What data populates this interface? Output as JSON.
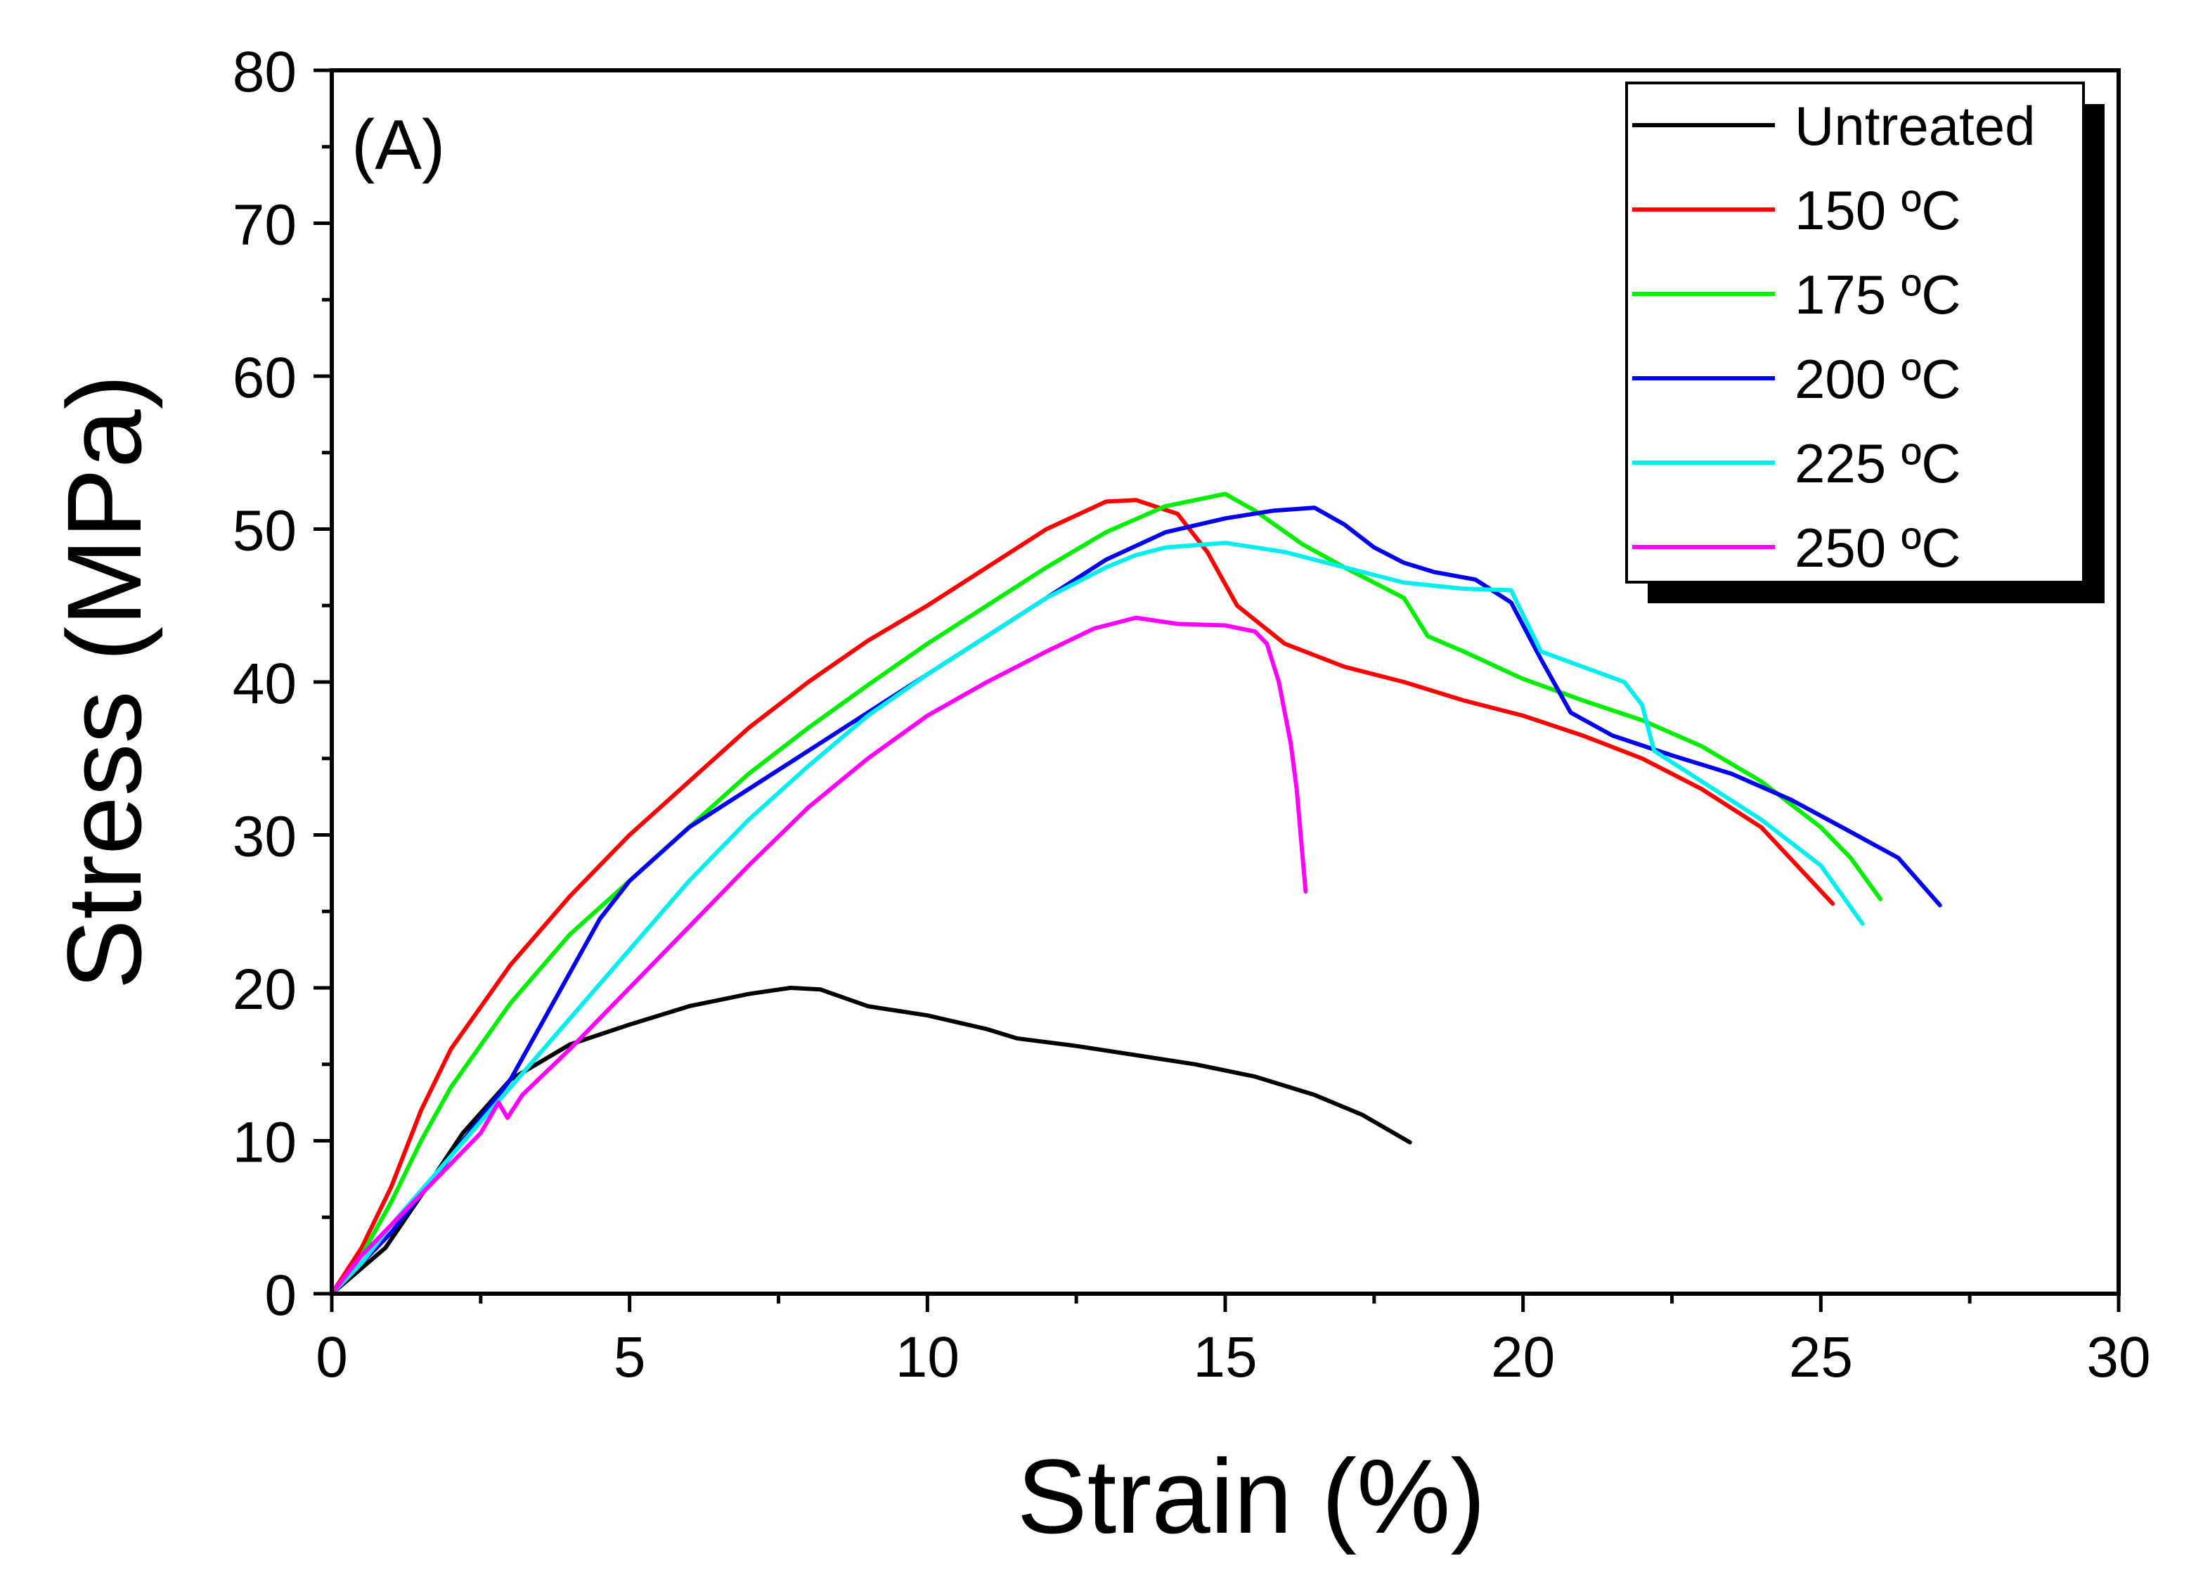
{
  "chart_data": {
    "type": "line",
    "panel_label": "(A)",
    "xlabel": "Strain (%)",
    "ylabel": "Stress (MPa)",
    "xlim": [
      0,
      30
    ],
    "ylim": [
      0,
      80
    ],
    "xticks": [
      0,
      5,
      10,
      15,
      20,
      25,
      30
    ],
    "yticks": [
      0,
      10,
      20,
      30,
      40,
      50,
      60,
      70,
      80
    ],
    "grid": false,
    "legend_position": "top-right",
    "series": [
      {
        "name": "Untreated",
        "color": "#000000",
        "points": [
          [
            0,
            0
          ],
          [
            0.9,
            3
          ],
          [
            1.6,
            7
          ],
          [
            2.2,
            10.5
          ],
          [
            3,
            14
          ],
          [
            4,
            16.3
          ],
          [
            5,
            17.6
          ],
          [
            6,
            18.8
          ],
          [
            7,
            19.6
          ],
          [
            7.7,
            20
          ],
          [
            8.2,
            19.9
          ],
          [
            9,
            18.8
          ],
          [
            10,
            18.2
          ],
          [
            11,
            17.3
          ],
          [
            11.5,
            16.7
          ],
          [
            12.5,
            16.2
          ],
          [
            13.5,
            15.6
          ],
          [
            14.5,
            15.0
          ],
          [
            15.5,
            14.2
          ],
          [
            16.5,
            13.0
          ],
          [
            17.3,
            11.7
          ],
          [
            18.1,
            9.9
          ]
        ]
      },
      {
        "name": "150 ºC",
        "color": "#ff0000",
        "points": [
          [
            0,
            0
          ],
          [
            0.5,
            3
          ],
          [
            1,
            7
          ],
          [
            1.5,
            12
          ],
          [
            2,
            16
          ],
          [
            3,
            21.5
          ],
          [
            4,
            26
          ],
          [
            5,
            30
          ],
          [
            6,
            33.5
          ],
          [
            7,
            37
          ],
          [
            8,
            40
          ],
          [
            9,
            42.7
          ],
          [
            10,
            45
          ],
          [
            11,
            47.5
          ],
          [
            12,
            50
          ],
          [
            13,
            51.8
          ],
          [
            13.5,
            51.9
          ],
          [
            14.2,
            51
          ],
          [
            14.7,
            48.5
          ],
          [
            15.2,
            45
          ],
          [
            16,
            42.5
          ],
          [
            17,
            41
          ],
          [
            18,
            40
          ],
          [
            19,
            38.8
          ],
          [
            20,
            37.8
          ],
          [
            21,
            36.5
          ],
          [
            22,
            35
          ],
          [
            23,
            33
          ],
          [
            24,
            30.5
          ],
          [
            25.2,
            25.5
          ]
        ]
      },
      {
        "name": "175 ºC",
        "color": "#00ee00",
        "points": [
          [
            0,
            0
          ],
          [
            0.5,
            2.5
          ],
          [
            1,
            6
          ],
          [
            1.5,
            10
          ],
          [
            2,
            13.5
          ],
          [
            3,
            19
          ],
          [
            4,
            23.5
          ],
          [
            5,
            27
          ],
          [
            6,
            30.5
          ],
          [
            7,
            34
          ],
          [
            8,
            37
          ],
          [
            9,
            39.8
          ],
          [
            10,
            42.5
          ],
          [
            11,
            45
          ],
          [
            12,
            47.5
          ],
          [
            13,
            49.8
          ],
          [
            14,
            51.5
          ],
          [
            15,
            52.3
          ],
          [
            15.5,
            51.2
          ],
          [
            16.3,
            49
          ],
          [
            17,
            47.5
          ],
          [
            18,
            45.5
          ],
          [
            18.4,
            43
          ],
          [
            19,
            42
          ],
          [
            20,
            40.2
          ],
          [
            21,
            38.8
          ],
          [
            22,
            37.5
          ],
          [
            23,
            35.8
          ],
          [
            24,
            33.5
          ],
          [
            25,
            30.5
          ],
          [
            25.5,
            28.5
          ],
          [
            26,
            25.8
          ]
        ]
      },
      {
        "name": "200 ºC",
        "color": "#0000ee",
        "points": [
          [
            0,
            0
          ],
          [
            0.5,
            2
          ],
          [
            1,
            4
          ],
          [
            1.5,
            6.5
          ],
          [
            2,
            9
          ],
          [
            2.5,
            11.5
          ],
          [
            3,
            14
          ],
          [
            3.5,
            17.5
          ],
          [
            4,
            21
          ],
          [
            4.5,
            24.5
          ],
          [
            5,
            27
          ],
          [
            6,
            30.5
          ],
          [
            7,
            33
          ],
          [
            8,
            35.5
          ],
          [
            9,
            38
          ],
          [
            10,
            40.5
          ],
          [
            11,
            43
          ],
          [
            12,
            45.5
          ],
          [
            13,
            48
          ],
          [
            14,
            49.8
          ],
          [
            15,
            50.7
          ],
          [
            15.8,
            51.2
          ],
          [
            16.5,
            51.4
          ],
          [
            17,
            50.3
          ],
          [
            17.5,
            48.8
          ],
          [
            18,
            47.8
          ],
          [
            18.5,
            47.2
          ],
          [
            19.2,
            46.7
          ],
          [
            19.8,
            45.2
          ],
          [
            20.3,
            41.5
          ],
          [
            20.8,
            38
          ],
          [
            21.5,
            36.5
          ],
          [
            22.5,
            35.2
          ],
          [
            23.5,
            34
          ],
          [
            24.5,
            32.3
          ],
          [
            25.5,
            30.2
          ],
          [
            26.3,
            28.5
          ],
          [
            27,
            25.4
          ]
        ]
      },
      {
        "name": "225 ºC",
        "color": "#00eeee",
        "points": [
          [
            0,
            0
          ],
          [
            0.5,
            2
          ],
          [
            1,
            4.5
          ],
          [
            2,
            9
          ],
          [
            3,
            13.5
          ],
          [
            4,
            18
          ],
          [
            5,
            22.5
          ],
          [
            6,
            27
          ],
          [
            7,
            31
          ],
          [
            8,
            34.5
          ],
          [
            9,
            37.8
          ],
          [
            10,
            40.5
          ],
          [
            11,
            43
          ],
          [
            12,
            45.5
          ],
          [
            13,
            47.5
          ],
          [
            13.5,
            48.3
          ],
          [
            14,
            48.8
          ],
          [
            15,
            49.1
          ],
          [
            16,
            48.5
          ],
          [
            17,
            47.5
          ],
          [
            18,
            46.5
          ],
          [
            19,
            46.1
          ],
          [
            19.8,
            46
          ],
          [
            20.3,
            42
          ],
          [
            21,
            41
          ],
          [
            21.7,
            40
          ],
          [
            22,
            38.5
          ],
          [
            22.2,
            35.5
          ],
          [
            23,
            33.5
          ],
          [
            24,
            31
          ],
          [
            25,
            28
          ],
          [
            25.7,
            24.2
          ]
        ]
      },
      {
        "name": "250 ºC",
        "color": "#ff00ff",
        "points": [
          [
            0,
            0
          ],
          [
            0.5,
            2.5
          ],
          [
            1,
            4.5
          ],
          [
            1.5,
            6.5
          ],
          [
            2,
            8.5
          ],
          [
            2.5,
            10.5
          ],
          [
            2.8,
            12.5
          ],
          [
            2.95,
            11.5
          ],
          [
            3.2,
            13
          ],
          [
            4,
            16
          ],
          [
            5,
            20
          ],
          [
            6,
            24
          ],
          [
            7,
            28
          ],
          [
            8,
            31.8
          ],
          [
            9,
            35
          ],
          [
            10,
            37.8
          ],
          [
            11,
            40
          ],
          [
            12,
            42
          ],
          [
            12.8,
            43.5
          ],
          [
            13.5,
            44.2
          ],
          [
            14.2,
            43.8
          ],
          [
            15,
            43.7
          ],
          [
            15.5,
            43.3
          ],
          [
            15.7,
            42.5
          ],
          [
            15.9,
            40
          ],
          [
            16.1,
            36
          ],
          [
            16.2,
            33
          ],
          [
            16.3,
            28.5
          ],
          [
            16.35,
            26.3
          ]
        ]
      }
    ]
  }
}
